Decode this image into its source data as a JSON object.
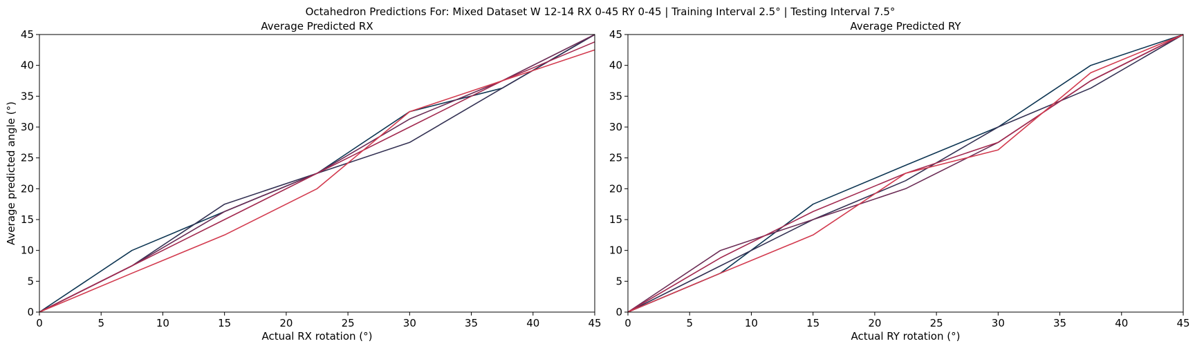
{
  "suptitle": "Octahedron Predictions For: Mixed Dataset W 12-14 RX 0-45 RY 0-45 | Training Interval 2.5° | Testing Interval 7.5°",
  "colors": [
    "#0d3552",
    "#333153",
    "#6b2c55",
    "#a2294f",
    "#d23a4e"
  ],
  "chart_data": [
    {
      "type": "line",
      "title": "Average Predicted RX",
      "xlabel": "Actual RX rotation (°)",
      "ylabel": "Average predicted angle (°)",
      "xlim": [
        0,
        45
      ],
      "ylim": [
        0,
        45
      ],
      "xticks": [
        0,
        5,
        10,
        15,
        20,
        25,
        30,
        35,
        40,
        45
      ],
      "yticks": [
        0,
        5,
        10,
        15,
        20,
        25,
        30,
        35,
        40,
        45
      ],
      "grid": false,
      "x": [
        0,
        7.5,
        15,
        22.5,
        30,
        37.5,
        45
      ],
      "series": [
        {
          "color": "#0d3552",
          "values": [
            0,
            10,
            16.3,
            22.5,
            32.5,
            36.3,
            45
          ]
        },
        {
          "color": "#333153",
          "values": [
            0,
            7.5,
            17.5,
            22.5,
            27.5,
            36.3,
            45
          ]
        },
        {
          "color": "#6b2c55",
          "values": [
            0,
            7.5,
            16.3,
            22.5,
            31.3,
            37.5,
            45
          ]
        },
        {
          "color": "#a2294f",
          "values": [
            0,
            7.5,
            15.0,
            22.5,
            30.0,
            37.5,
            43.8
          ]
        },
        {
          "color": "#d23a4e",
          "values": [
            0,
            6.3,
            12.5,
            20.0,
            32.5,
            37.5,
            42.5
          ]
        }
      ]
    },
    {
      "type": "line",
      "title": "Average Predicted RY",
      "xlabel": "Actual RY rotation (°)",
      "ylabel": "",
      "xlim": [
        0,
        45
      ],
      "ylim": [
        0,
        45
      ],
      "xticks": [
        0,
        5,
        10,
        15,
        20,
        25,
        30,
        35,
        40,
        45
      ],
      "yticks": [
        0,
        5,
        10,
        15,
        20,
        25,
        30,
        35,
        40,
        45
      ],
      "grid": false,
      "x": [
        0,
        7.5,
        15,
        22.5,
        30,
        37.5,
        45
      ],
      "series": [
        {
          "color": "#0d3552",
          "values": [
            0,
            6.3,
            17.5,
            23.8,
            30.0,
            40.0,
            45
          ]
        },
        {
          "color": "#333153",
          "values": [
            0,
            7.5,
            15.0,
            21.3,
            30.0,
            36.3,
            45
          ]
        },
        {
          "color": "#6b2c55",
          "values": [
            0,
            10.0,
            15.0,
            20.0,
            27.5,
            37.5,
            45
          ]
        },
        {
          "color": "#a2294f",
          "values": [
            0,
            8.8,
            16.3,
            22.5,
            27.5,
            37.5,
            45
          ]
        },
        {
          "color": "#d23a4e",
          "values": [
            0,
            6.3,
            12.5,
            22.5,
            26.3,
            38.8,
            45
          ]
        }
      ]
    }
  ]
}
